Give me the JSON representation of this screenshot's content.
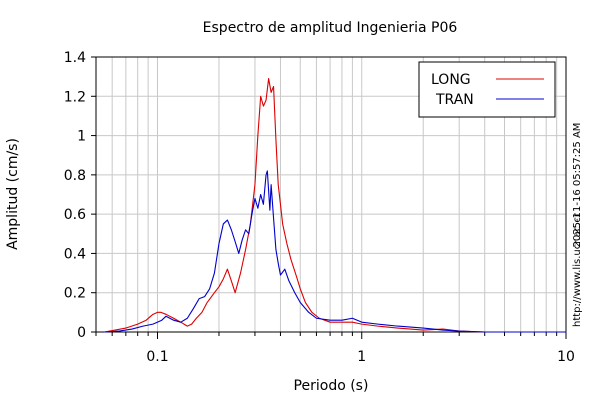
{
  "chart_data": {
    "type": "line",
    "title": "Espectro de amplitud Ingenieria P06",
    "xlabel": "Periodo (s)",
    "ylabel": "Amplitud (cm/s)",
    "x_scale": "log",
    "xlim": [
      0.05,
      10
    ],
    "ylim": [
      0,
      1.4
    ],
    "x_ticks": [
      {
        "value": 0.1,
        "label": "0.1"
      },
      {
        "value": 1,
        "label": "1"
      },
      {
        "value": 10,
        "label": "10"
      }
    ],
    "y_ticks": [
      {
        "value": 0,
        "label": "0"
      },
      {
        "value": 0.2,
        "label": "0.2"
      },
      {
        "value": 0.4,
        "label": "0.4"
      },
      {
        "value": 0.6,
        "label": "0.6"
      },
      {
        "value": 0.8,
        "label": "0.8"
      },
      {
        "value": 1,
        "label": "1"
      },
      {
        "value": 1.2,
        "label": "1.2"
      },
      {
        "value": 1.4,
        "label": "1.4"
      }
    ],
    "grid": true,
    "legend_position": "top-right",
    "series": [
      {
        "name": "LONG",
        "color": "#dd0000",
        "points": [
          [
            0.055,
            0.0
          ],
          [
            0.062,
            0.01
          ],
          [
            0.07,
            0.02
          ],
          [
            0.08,
            0.04
          ],
          [
            0.088,
            0.06
          ],
          [
            0.095,
            0.09
          ],
          [
            0.1,
            0.1
          ],
          [
            0.104,
            0.1
          ],
          [
            0.11,
            0.09
          ],
          [
            0.12,
            0.07
          ],
          [
            0.13,
            0.05
          ],
          [
            0.14,
            0.03
          ],
          [
            0.147,
            0.04
          ],
          [
            0.155,
            0.07
          ],
          [
            0.165,
            0.1
          ],
          [
            0.175,
            0.15
          ],
          [
            0.19,
            0.2
          ],
          [
            0.2,
            0.23
          ],
          [
            0.21,
            0.27
          ],
          [
            0.22,
            0.32
          ],
          [
            0.23,
            0.26
          ],
          [
            0.24,
            0.2
          ],
          [
            0.255,
            0.3
          ],
          [
            0.27,
            0.42
          ],
          [
            0.285,
            0.55
          ],
          [
            0.3,
            0.75
          ],
          [
            0.31,
            1.0
          ],
          [
            0.32,
            1.2
          ],
          [
            0.33,
            1.15
          ],
          [
            0.34,
            1.18
          ],
          [
            0.35,
            1.29
          ],
          [
            0.36,
            1.22
          ],
          [
            0.37,
            1.25
          ],
          [
            0.38,
            0.98
          ],
          [
            0.39,
            0.75
          ],
          [
            0.4,
            0.65
          ],
          [
            0.41,
            0.55
          ],
          [
            0.43,
            0.45
          ],
          [
            0.45,
            0.37
          ],
          [
            0.48,
            0.28
          ],
          [
            0.5,
            0.22
          ],
          [
            0.53,
            0.15
          ],
          [
            0.57,
            0.1
          ],
          [
            0.62,
            0.07
          ],
          [
            0.7,
            0.05
          ],
          [
            0.8,
            0.05
          ],
          [
            0.9,
            0.05
          ],
          [
            1.0,
            0.04
          ],
          [
            1.2,
            0.03
          ],
          [
            1.5,
            0.02
          ],
          [
            2.0,
            0.01
          ],
          [
            2.5,
            0.015
          ],
          [
            3.0,
            0.005
          ],
          [
            4.0,
            0.0
          ],
          [
            6.0,
            0.0
          ],
          [
            10.0,
            0.0
          ]
        ]
      },
      {
        "name": "TRAN",
        "color": "#0000cc",
        "points": [
          [
            0.055,
            0.0
          ],
          [
            0.065,
            0.005
          ],
          [
            0.075,
            0.015
          ],
          [
            0.085,
            0.03
          ],
          [
            0.095,
            0.04
          ],
          [
            0.105,
            0.06
          ],
          [
            0.11,
            0.08
          ],
          [
            0.12,
            0.06
          ],
          [
            0.13,
            0.05
          ],
          [
            0.14,
            0.07
          ],
          [
            0.15,
            0.12
          ],
          [
            0.16,
            0.17
          ],
          [
            0.17,
            0.18
          ],
          [
            0.18,
            0.22
          ],
          [
            0.19,
            0.3
          ],
          [
            0.2,
            0.45
          ],
          [
            0.21,
            0.55
          ],
          [
            0.22,
            0.57
          ],
          [
            0.23,
            0.52
          ],
          [
            0.24,
            0.46
          ],
          [
            0.25,
            0.4
          ],
          [
            0.26,
            0.47
          ],
          [
            0.27,
            0.52
          ],
          [
            0.28,
            0.5
          ],
          [
            0.29,
            0.6
          ],
          [
            0.3,
            0.68
          ],
          [
            0.31,
            0.63
          ],
          [
            0.32,
            0.7
          ],
          [
            0.33,
            0.65
          ],
          [
            0.34,
            0.8
          ],
          [
            0.345,
            0.82
          ],
          [
            0.355,
            0.62
          ],
          [
            0.36,
            0.75
          ],
          [
            0.37,
            0.58
          ],
          [
            0.38,
            0.42
          ],
          [
            0.39,
            0.35
          ],
          [
            0.4,
            0.29
          ],
          [
            0.42,
            0.32
          ],
          [
            0.44,
            0.26
          ],
          [
            0.47,
            0.2
          ],
          [
            0.5,
            0.15
          ],
          [
            0.55,
            0.1
          ],
          [
            0.6,
            0.07
          ],
          [
            0.7,
            0.06
          ],
          [
            0.8,
            0.06
          ],
          [
            0.9,
            0.07
          ],
          [
            1.0,
            0.05
          ],
          [
            1.2,
            0.04
          ],
          [
            1.5,
            0.03
          ],
          [
            2.0,
            0.02
          ],
          [
            2.5,
            0.01
          ],
          [
            3.0,
            0.005
          ],
          [
            4.0,
            0.0
          ],
          [
            6.0,
            0.0
          ],
          [
            10.0,
            0.0
          ]
        ]
      }
    ]
  },
  "side_text": {
    "timestamp": "2025-11-16 05:57:25 AM",
    "website": "http://www.lis.ucr.ac.cr"
  }
}
